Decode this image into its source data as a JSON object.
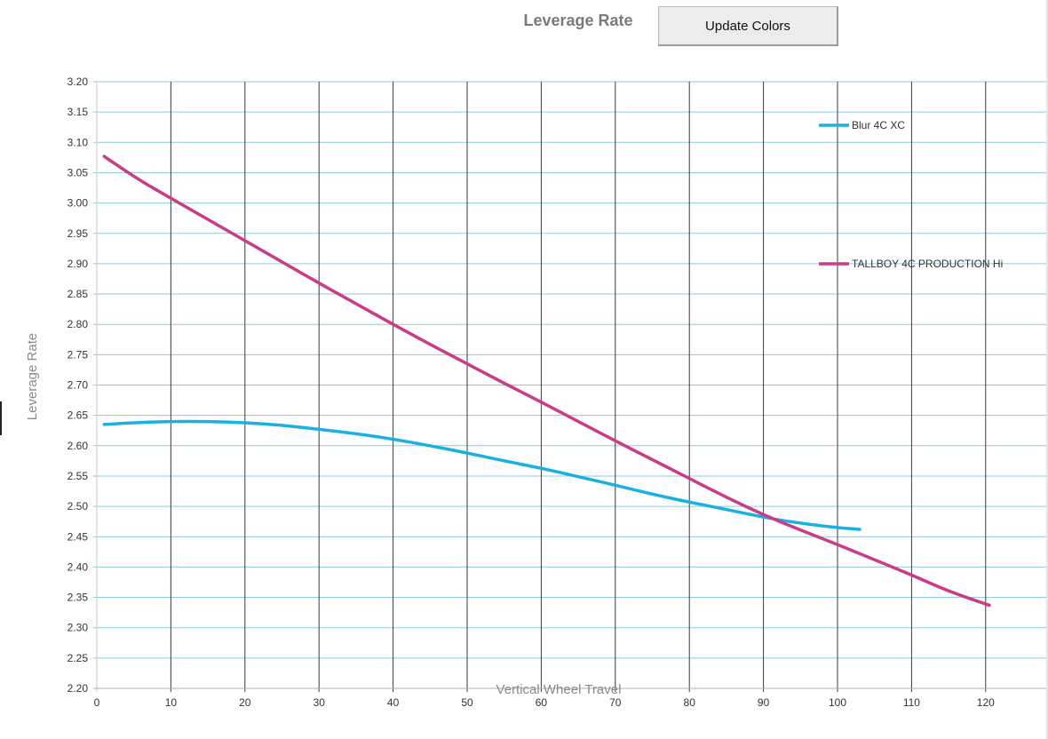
{
  "header": {
    "title": "Leverage Rate",
    "update_button_label": "Update Colors"
  },
  "chart_data": {
    "type": "line",
    "title": "Leverage Rate",
    "xlabel": "Vertical Wheel Travel",
    "ylabel": "Leverage Rate",
    "xlim": [
      0,
      120
    ],
    "ylim": [
      2.2,
      3.2
    ],
    "x_ticks": [
      0,
      10,
      20,
      30,
      40,
      50,
      60,
      70,
      80,
      90,
      100,
      110,
      120
    ],
    "x_tick_labels": [
      "0",
      "10",
      "20",
      "30",
      "40",
      "50",
      "60",
      "70",
      "80",
      "90",
      "100",
      "110",
      "120"
    ],
    "y_ticks": [
      2.2,
      2.25,
      2.3,
      2.35,
      2.4,
      2.45,
      2.5,
      2.55,
      2.6,
      2.65,
      2.7,
      2.75,
      2.8,
      2.85,
      2.9,
      2.95,
      3.0,
      3.05,
      3.1,
      3.15,
      3.2
    ],
    "y_tick_labels": [
      "2.20",
      "2.25",
      "2.30",
      "2.35",
      "2.40",
      "2.45",
      "2.50",
      "2.55",
      "2.60",
      "2.65",
      "2.70",
      "2.75",
      "2.80",
      "2.85",
      "2.90",
      "2.95",
      "3.00",
      "3.05",
      "3.10",
      "3.15",
      "3.20"
    ],
    "grid": {
      "horizontal": true,
      "vertical": true
    },
    "legend_position": "right",
    "series": [
      {
        "name": "Blur 4C XC",
        "color": "#1ab0e3",
        "x": [
          1,
          5,
          10,
          15,
          20,
          25,
          30,
          35,
          40,
          45,
          50,
          55,
          60,
          65,
          70,
          75,
          80,
          85,
          90,
          95,
          100,
          103
        ],
        "y": [
          2.635,
          2.638,
          2.64,
          2.64,
          2.638,
          2.634,
          2.627,
          2.62,
          2.611,
          2.6,
          2.588,
          2.575,
          2.563,
          2.549,
          2.535,
          2.52,
          2.507,
          2.495,
          2.482,
          2.472,
          2.465,
          2.462
        ]
      },
      {
        "name": "TALLBOY 4C PRODUCTION Hi",
        "color": "#c93c86",
        "x": [
          1,
          5,
          10,
          15,
          20,
          25,
          30,
          35,
          40,
          45,
          50,
          55,
          60,
          65,
          70,
          75,
          80,
          85,
          90,
          95,
          100,
          105,
          110,
          115,
          120.5
        ],
        "y": [
          3.077,
          3.043,
          3.008,
          2.973,
          2.938,
          2.903,
          2.868,
          2.834,
          2.8,
          2.767,
          2.735,
          2.703,
          2.672,
          2.64,
          2.608,
          2.577,
          2.546,
          2.515,
          2.486,
          2.461,
          2.437,
          2.412,
          2.387,
          2.36,
          2.337
        ]
      }
    ]
  }
}
